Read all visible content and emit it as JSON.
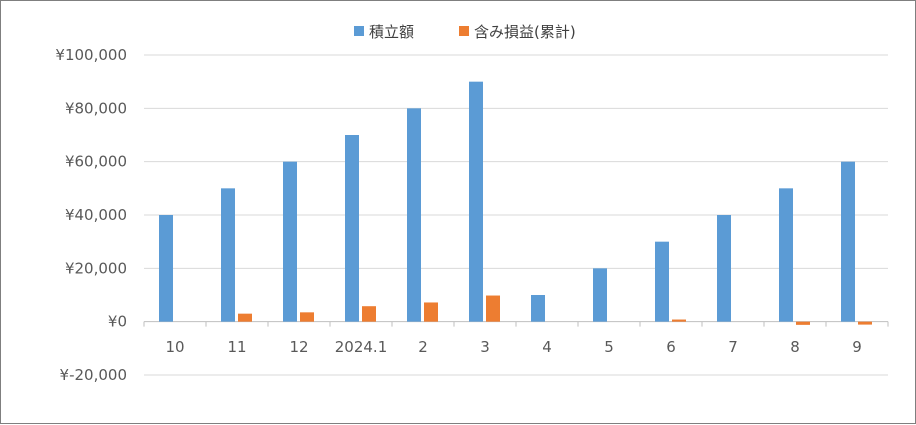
{
  "chart_data": {
    "type": "bar",
    "categories": [
      "10",
      "11",
      "12",
      "2024.1",
      "2",
      "3",
      "4",
      "5",
      "6",
      "7",
      "8",
      "9"
    ],
    "series": [
      {
        "name": "積立額",
        "color": "#5b9bd5",
        "values": [
          40000,
          50000,
          60000,
          70000,
          80000,
          90000,
          10000,
          20000,
          30000,
          40000,
          50000,
          60000
        ]
      },
      {
        "name": "含み損益(累計)",
        "color": "#ed7d31",
        "values": [
          0,
          3000,
          3500,
          5800,
          7200,
          9800,
          0,
          0,
          800,
          0,
          -1200,
          -1100
        ]
      }
    ],
    "ylim": [
      -20000,
      100000
    ],
    "y_ticks": [
      {
        "value": 100000,
        "label": "¥100,000",
        "color": "#595959"
      },
      {
        "value": 80000,
        "label": "¥80,000",
        "color": "#595959"
      },
      {
        "value": 60000,
        "label": "¥60,000",
        "color": "#595959"
      },
      {
        "value": 40000,
        "label": "¥40,000",
        "color": "#595959"
      },
      {
        "value": 20000,
        "label": "¥20,000",
        "color": "#595959"
      },
      {
        "value": 0,
        "label": "¥0",
        "color": "#595959"
      },
      {
        "value": -20000,
        "label": "¥-20,000",
        "color": "#ff0000"
      }
    ],
    "legend_position": "top",
    "grid": true,
    "gridline_color": "#d9d9d9"
  }
}
